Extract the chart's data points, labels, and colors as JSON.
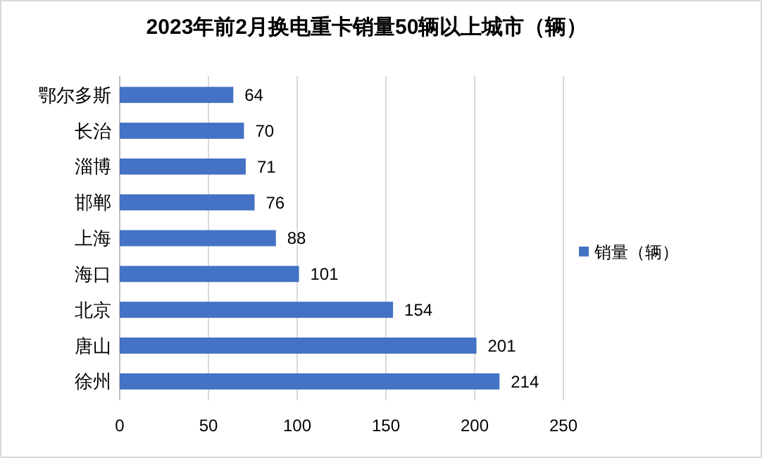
{
  "chart_data": {
    "type": "bar",
    "orientation": "horizontal",
    "title": "2023年前2月换电重卡销量50辆以上城市（辆）",
    "categories": [
      "鄂尔多斯",
      "长治",
      "淄博",
      "邯郸",
      "上海",
      "海口",
      "北京",
      "唐山",
      "徐州"
    ],
    "series": [
      {
        "name": "销量（辆）",
        "color": "#4472c4",
        "values": [
          64,
          70,
          71,
          76,
          88,
          101,
          154,
          201,
          214
        ]
      }
    ],
    "xlim": [
      0,
      250
    ],
    "xticks": [
      0,
      50,
      100,
      150,
      200,
      250
    ],
    "grid": "x",
    "legend": "right",
    "data_labels": true
  }
}
